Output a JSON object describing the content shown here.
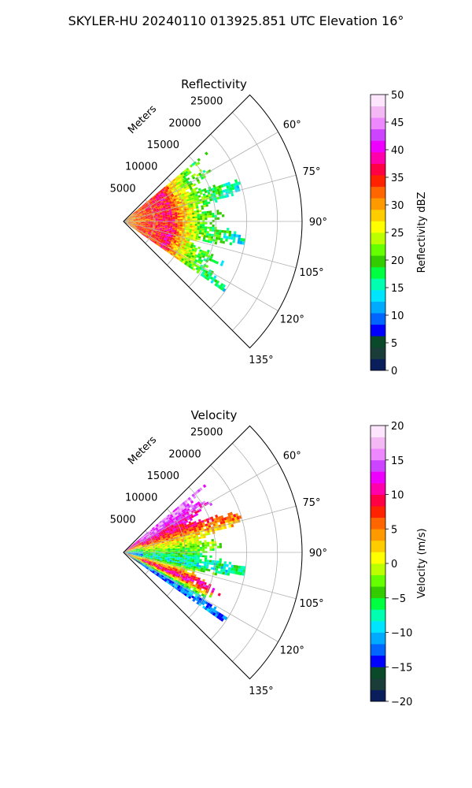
{
  "figure": {
    "suptitle": "SKYLER-HU  20240110  013925.851 UTC Elevation 16°"
  },
  "chart_data": [
    {
      "type": "heatmap",
      "projection": "polar-sector",
      "title": "Reflectivity",
      "radial_axis_label": "Meters",
      "radial_ticks": [
        5000,
        10000,
        15000,
        20000,
        25000
      ],
      "radial_tick_labels": [
        "5000",
        "10000",
        "15000",
        "20000",
        "25000"
      ],
      "rmax": 29000,
      "theta_range_deg": [
        45,
        135
      ],
      "theta_ticks_deg": [
        60,
        75,
        90,
        105,
        120,
        135
      ],
      "theta_tick_labels": [
        "60°",
        "75°",
        "90°",
        "105°",
        "120°",
        "135°"
      ],
      "grid": true,
      "colorbar": {
        "label": "Reflectivity dBZ",
        "min": 0,
        "max": 50,
        "ticks": [
          0,
          5,
          10,
          15,
          20,
          25,
          30,
          35,
          40,
          45,
          50
        ],
        "tick_labels": [
          "0",
          "5",
          "10",
          "15",
          "20",
          "25",
          "30",
          "35",
          "40",
          "45",
          "50"
        ]
      },
      "field_summary": {
        "data_sector_deg": [
          50,
          125
        ],
        "max_range_m": 20000,
        "profile_by_range": [
          {
            "r_m": 0,
            "value": 30
          },
          {
            "r_m": 3000,
            "value": 33
          },
          {
            "r_m": 6000,
            "value": 35
          },
          {
            "r_m": 7500,
            "value": 37
          },
          {
            "r_m": 9000,
            "value": 30
          },
          {
            "r_m": 12000,
            "value": 22
          },
          {
            "r_m": 16000,
            "value": 18
          },
          {
            "r_m": 20000,
            "value": 14
          }
        ]
      }
    },
    {
      "type": "heatmap",
      "projection": "polar-sector",
      "title": "Velocity",
      "radial_axis_label": "Meters",
      "radial_ticks": [
        5000,
        10000,
        15000,
        20000,
        25000
      ],
      "radial_tick_labels": [
        "5000",
        "10000",
        "15000",
        "20000",
        "25000"
      ],
      "rmax": 29000,
      "theta_range_deg": [
        45,
        135
      ],
      "theta_ticks_deg": [
        60,
        75,
        90,
        105,
        120,
        135
      ],
      "theta_tick_labels": [
        "60°",
        "75°",
        "90°",
        "105°",
        "120°",
        "135°"
      ],
      "grid": true,
      "colorbar": {
        "label": "Velocity (m/s)",
        "min": -20,
        "max": 20,
        "ticks": [
          -20,
          -15,
          -10,
          -5,
          0,
          5,
          10,
          15,
          20
        ],
        "tick_labels": [
          "−20",
          "−15",
          "−10",
          "−5",
          "0",
          "5",
          "10",
          "15",
          "20"
        ]
      },
      "field_summary": {
        "data_sector_deg": [
          50,
          125
        ],
        "max_range_m": 20000,
        "profile_by_azimuth": [
          {
            "az_deg": 55,
            "value": 15
          },
          {
            "az_deg": 68,
            "value": 8
          },
          {
            "az_deg": 80,
            "value": 0
          },
          {
            "az_deg": 92,
            "value": -6
          },
          {
            "az_deg": 100,
            "value": -8
          },
          {
            "az_deg": 106,
            "value": 3
          },
          {
            "az_deg": 112,
            "value": 12
          },
          {
            "az_deg": 120,
            "value": -12
          }
        ]
      }
    }
  ],
  "colormaps": {
    "reflectivity": [
      "#0b1e5c",
      "#1a3d3a",
      "#0a4a2a",
      "#0000ff",
      "#0066ff",
      "#00aaff",
      "#00e5ff",
      "#00ffb0",
      "#00ff40",
      "#33cc00",
      "#66ff00",
      "#bbff00",
      "#ffff00",
      "#ffcc00",
      "#ff9900",
      "#ff6600",
      "#ff2200",
      "#ff0044",
      "#ff00aa",
      "#ee00ff",
      "#cc44ff",
      "#ee88ff",
      "#f4b8f4",
      "#fde6fd"
    ],
    "velocity": [
      "#0b1e5c",
      "#1a3d3a",
      "#0a4a2a",
      "#0000ff",
      "#0066ff",
      "#00aaff",
      "#00e5ff",
      "#00ffb0",
      "#00ff40",
      "#33cc00",
      "#66ff00",
      "#bbff00",
      "#ffff00",
      "#ffcc00",
      "#ff9900",
      "#ff6600",
      "#ff2200",
      "#ff0044",
      "#ff00aa",
      "#ee00ff",
      "#cc44ff",
      "#ee88ff",
      "#f4b8f4",
      "#fde6fd"
    ]
  }
}
